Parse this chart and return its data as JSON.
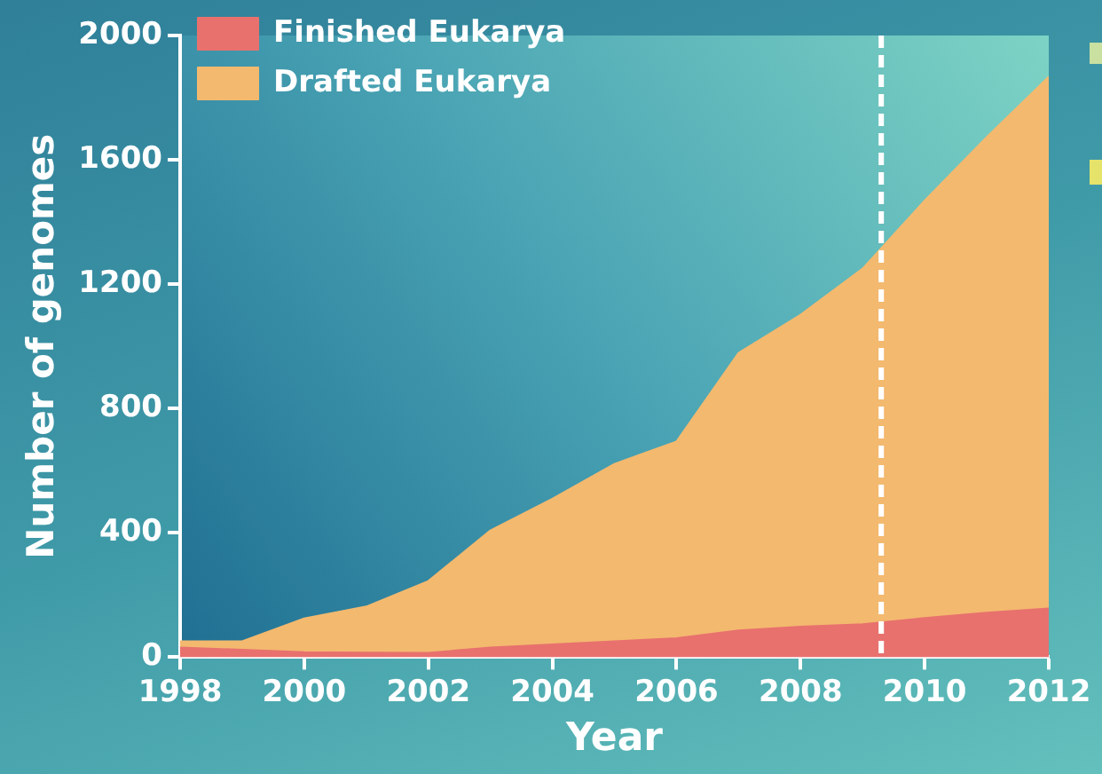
{
  "chart_data": {
    "type": "area",
    "stacked": true,
    "xlabel": "Year",
    "ylabel": "Number of genomes",
    "x": [
      1998,
      1999,
      2000,
      2001,
      2002,
      2003,
      2004,
      2005,
      2006,
      2007,
      2008,
      2009,
      2010,
      2011,
      2012
    ],
    "series": [
      {
        "name": "Finished Eukarya",
        "color": "#e8716e",
        "values": [
          31,
          24,
          16,
          15,
          14,
          31,
          41,
          51,
          61,
          86,
          98,
          106,
          126,
          143,
          157
        ]
      },
      {
        "name": "Drafted Eukarya",
        "color": "#f3b96f",
        "values": [
          20,
          27,
          109,
          148,
          231,
          377,
          469,
          571,
          633,
          893,
          1004,
          1144,
          1343,
          1530,
          1710
        ]
      }
    ],
    "xlim": [
      1998,
      2012
    ],
    "xticks": [
      1998,
      2000,
      2002,
      2004,
      2006,
      2008,
      2010,
      2012
    ],
    "ylim": [
      0,
      2000
    ],
    "yticks": [
      0,
      400,
      800,
      1200,
      1600,
      2000
    ],
    "ref_lines": [
      {
        "axis": "x",
        "value": 2009.3,
        "color": "#ffffff",
        "line_style": "dashed"
      }
    ],
    "grid": false,
    "legend": "top left"
  }
}
